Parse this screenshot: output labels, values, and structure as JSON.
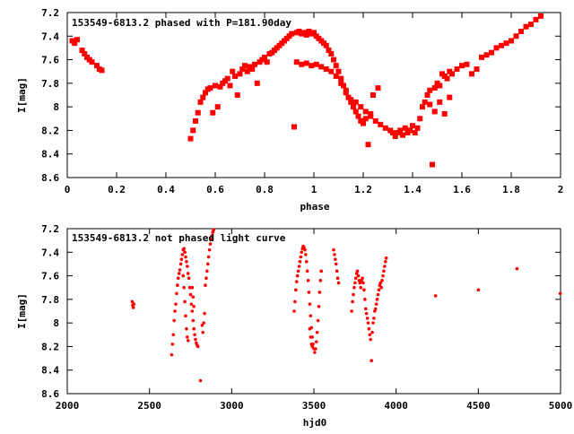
{
  "colors": {
    "points": "#ff0000",
    "axis": "#000000",
    "background": "#ffffff"
  },
  "chart_data": [
    {
      "type": "scatter",
      "title": "153549-6813.2 phased with P=181.90day",
      "xlabel": "phase",
      "ylabel": "I[mag]",
      "xlim": [
        0,
        2
      ],
      "ylim": [
        8.6,
        7.2
      ],
      "y_inverted": true,
      "xticks": [
        0,
        0.2,
        0.4,
        0.6,
        0.8,
        1,
        1.2,
        1.4,
        1.6,
        1.8,
        2
      ],
      "xtick_labels": [
        "0",
        "0.2",
        "0.4",
        "0.6",
        "0.8",
        "1",
        "1.2",
        "1.4",
        "1.6",
        "1.8",
        "2"
      ],
      "yticks": [
        7.2,
        7.4,
        7.6,
        7.8,
        8.0,
        8.2,
        8.4,
        8.6
      ],
      "ytick_labels": [
        "7.2",
        "7.4",
        "7.6",
        "7.8",
        "8",
        "8.2",
        "8.4",
        "8.6"
      ],
      "grid": false,
      "marker": "filled-square",
      "points": [
        [
          0.02,
          7.44
        ],
        [
          0.03,
          7.46
        ],
        [
          0.04,
          7.43
        ],
        [
          0.06,
          7.52
        ],
        [
          0.07,
          7.55
        ],
        [
          0.08,
          7.58
        ],
        [
          0.09,
          7.6
        ],
        [
          0.1,
          7.62
        ],
        [
          0.12,
          7.65
        ],
        [
          0.13,
          7.68
        ],
        [
          0.14,
          7.69
        ],
        [
          0.5,
          8.27
        ],
        [
          0.51,
          8.2
        ],
        [
          0.52,
          8.12
        ],
        [
          0.53,
          8.05
        ],
        [
          0.54,
          7.96
        ],
        [
          0.55,
          7.92
        ],
        [
          0.56,
          7.88
        ],
        [
          0.57,
          7.85
        ],
        [
          0.58,
          7.84
        ],
        [
          0.59,
          8.05
        ],
        [
          0.6,
          7.82
        ],
        [
          0.61,
          8.0
        ],
        [
          0.62,
          7.83
        ],
        [
          0.63,
          7.8
        ],
        [
          0.64,
          7.78
        ],
        [
          0.65,
          7.76
        ],
        [
          0.66,
          7.82
        ],
        [
          0.67,
          7.7
        ],
        [
          0.68,
          7.74
        ],
        [
          0.69,
          7.9
        ],
        [
          0.7,
          7.72
        ],
        [
          0.71,
          7.68
        ],
        [
          0.72,
          7.65
        ],
        [
          0.73,
          7.7
        ],
        [
          0.74,
          7.66
        ],
        [
          0.75,
          7.68
        ],
        [
          0.76,
          7.64
        ],
        [
          0.77,
          7.8
        ],
        [
          0.78,
          7.62
        ],
        [
          0.79,
          7.6
        ],
        [
          0.8,
          7.58
        ],
        [
          0.81,
          7.62
        ],
        [
          0.82,
          7.55
        ],
        [
          0.83,
          7.54
        ],
        [
          0.84,
          7.52
        ],
        [
          0.85,
          7.5
        ],
        [
          0.86,
          7.48
        ],
        [
          0.87,
          7.46
        ],
        [
          0.88,
          7.44
        ],
        [
          0.89,
          7.42
        ],
        [
          0.9,
          7.4
        ],
        [
          0.91,
          7.38
        ],
        [
          0.92,
          8.17
        ],
        [
          0.93,
          7.37
        ],
        [
          0.94,
          7.36
        ],
        [
          0.95,
          7.38
        ],
        [
          0.96,
          7.37
        ],
        [
          0.97,
          7.39
        ],
        [
          0.98,
          7.36
        ],
        [
          0.99,
          7.38
        ],
        [
          1.0,
          7.37
        ],
        [
          1.01,
          7.4
        ],
        [
          1.02,
          7.42
        ],
        [
          1.03,
          7.44
        ],
        [
          1.04,
          7.46
        ],
        [
          1.05,
          7.48
        ],
        [
          1.06,
          7.52
        ],
        [
          1.07,
          7.55
        ],
        [
          1.08,
          7.6
        ],
        [
          1.09,
          7.65
        ],
        [
          1.1,
          7.7
        ],
        [
          1.11,
          7.76
        ],
        [
          1.12,
          7.82
        ],
        [
          1.13,
          7.88
        ],
        [
          1.14,
          7.92
        ],
        [
          1.15,
          7.96
        ],
        [
          1.16,
          8.0
        ],
        [
          1.17,
          8.04
        ],
        [
          1.18,
          8.08
        ],
        [
          1.19,
          8.12
        ],
        [
          1.2,
          8.14
        ],
        [
          1.21,
          8.1
        ],
        [
          1.22,
          8.32
        ],
        [
          1.23,
          8.06
        ],
        [
          0.93,
          7.62
        ],
        [
          0.95,
          7.64
        ],
        [
          0.97,
          7.63
        ],
        [
          0.99,
          7.65
        ],
        [
          1.01,
          7.64
        ],
        [
          1.03,
          7.66
        ],
        [
          1.05,
          7.68
        ],
        [
          1.07,
          7.7
        ],
        [
          1.09,
          7.74
        ],
        [
          1.11,
          7.8
        ],
        [
          1.13,
          7.86
        ],
        [
          1.15,
          7.94
        ],
        [
          1.17,
          7.96
        ],
        [
          1.19,
          8.0
        ],
        [
          1.21,
          8.04
        ],
        [
          1.23,
          8.08
        ],
        [
          1.25,
          8.12
        ],
        [
          1.27,
          8.15
        ],
        [
          1.29,
          8.18
        ],
        [
          1.31,
          8.2
        ],
        [
          1.32,
          8.22
        ],
        [
          1.33,
          8.25
        ],
        [
          1.34,
          8.22
        ],
        [
          1.35,
          8.2
        ],
        [
          1.36,
          8.24
        ],
        [
          1.37,
          8.18
        ],
        [
          1.38,
          8.22
        ],
        [
          1.39,
          8.2
        ],
        [
          1.4,
          8.16
        ],
        [
          1.41,
          8.22
        ],
        [
          1.42,
          8.18
        ],
        [
          1.24,
          7.9
        ],
        [
          1.26,
          7.84
        ],
        [
          1.43,
          8.1
        ],
        [
          1.44,
          8.0
        ],
        [
          1.45,
          7.96
        ],
        [
          1.46,
          7.9
        ],
        [
          1.47,
          7.86
        ],
        [
          1.48,
          8.49
        ],
        [
          1.49,
          7.84
        ],
        [
          1.5,
          7.8
        ],
        [
          1.51,
          7.82
        ],
        [
          1.52,
          7.72
        ],
        [
          1.53,
          7.74
        ],
        [
          1.54,
          7.76
        ],
        [
          1.55,
          7.7
        ],
        [
          1.56,
          7.72
        ],
        [
          1.58,
          7.68
        ],
        [
          1.6,
          7.65
        ],
        [
          1.62,
          7.64
        ],
        [
          1.64,
          7.72
        ],
        [
          1.66,
          7.68
        ],
        [
          1.68,
          7.58
        ],
        [
          1.7,
          7.56
        ],
        [
          1.72,
          7.54
        ],
        [
          1.74,
          7.5
        ],
        [
          1.76,
          7.48
        ],
        [
          1.78,
          7.46
        ],
        [
          1.8,
          7.44
        ],
        [
          1.82,
          7.4
        ],
        [
          1.84,
          7.36
        ],
        [
          1.86,
          7.32
        ],
        [
          1.88,
          7.3
        ],
        [
          1.9,
          7.26
        ],
        [
          1.92,
          7.23
        ],
        [
          1.47,
          7.98
        ],
        [
          1.49,
          8.04
        ],
        [
          1.51,
          7.96
        ],
        [
          1.53,
          8.06
        ],
        [
          1.55,
          7.92
        ]
      ]
    },
    {
      "type": "scatter",
      "title": "153549-6813.2 not phased light curve",
      "xlabel": "hjd0",
      "ylabel": "I[mag]",
      "xlim": [
        2000,
        5000
      ],
      "ylim": [
        8.6,
        7.2
      ],
      "y_inverted": true,
      "xticks": [
        2000,
        2500,
        3000,
        3500,
        4000,
        4500,
        5000
      ],
      "xtick_labels": [
        "2000",
        "2500",
        "3000",
        "3500",
        "4000",
        "4500",
        "5000"
      ],
      "yticks": [
        7.2,
        7.4,
        7.6,
        7.8,
        8.0,
        8.2,
        8.4,
        8.6
      ],
      "ytick_labels": [
        "7.2",
        "7.4",
        "7.6",
        "7.8",
        "8",
        "8.2",
        "8.4",
        "8.6"
      ],
      "grid": false,
      "marker": "small-dot",
      "points": [
        [
          2395,
          7.82
        ],
        [
          2398,
          7.85
        ],
        [
          2402,
          7.87
        ],
        [
          2405,
          7.84
        ],
        [
          2635,
          8.27
        ],
        [
          2640,
          8.18
        ],
        [
          2645,
          8.1
        ],
        [
          2650,
          7.98
        ],
        [
          2655,
          7.9
        ],
        [
          2660,
          7.84
        ],
        [
          2665,
          7.75
        ],
        [
          2670,
          7.68
        ],
        [
          2675,
          7.62
        ],
        [
          2680,
          7.58
        ],
        [
          2685,
          7.55
        ],
        [
          2690,
          7.5
        ],
        [
          2695,
          7.46
        ],
        [
          2700,
          7.42
        ],
        [
          2705,
          7.38
        ],
        [
          2710,
          7.37
        ],
        [
          2715,
          7.4
        ],
        [
          2720,
          7.44
        ],
        [
          2725,
          7.48
        ],
        [
          2730,
          7.52
        ],
        [
          2735,
          7.58
        ],
        [
          2740,
          7.62
        ],
        [
          2745,
          7.7
        ],
        [
          2750,
          7.76
        ],
        [
          2755,
          7.84
        ],
        [
          2760,
          7.9
        ],
        [
          2765,
          7.98
        ],
        [
          2770,
          8.05
        ],
        [
          2775,
          8.1
        ],
        [
          2780,
          8.14
        ],
        [
          2785,
          8.17
        ],
        [
          2790,
          8.19
        ],
        [
          2795,
          8.2
        ],
        [
          2705,
          7.6
        ],
        [
          2710,
          7.7
        ],
        [
          2715,
          7.82
        ],
        [
          2720,
          7.94
        ],
        [
          2725,
          8.05
        ],
        [
          2730,
          8.12
        ],
        [
          2735,
          8.15
        ],
        [
          2760,
          7.7
        ],
        [
          2765,
          7.78
        ],
        [
          2770,
          7.86
        ],
        [
          2810,
          8.49
        ],
        [
          2820,
          8.02
        ],
        [
          2825,
          8.08
        ],
        [
          2830,
          8.0
        ],
        [
          2835,
          7.92
        ],
        [
          2840,
          7.68
        ],
        [
          2845,
          7.62
        ],
        [
          2850,
          7.56
        ],
        [
          2855,
          7.5
        ],
        [
          2860,
          7.44
        ],
        [
          2865,
          7.38
        ],
        [
          2870,
          7.33
        ],
        [
          2875,
          7.29
        ],
        [
          2880,
          7.26
        ],
        [
          2885,
          7.23
        ],
        [
          2890,
          7.21
        ],
        [
          3380,
          7.9
        ],
        [
          3385,
          7.82
        ],
        [
          3390,
          7.72
        ],
        [
          3395,
          7.65
        ],
        [
          3400,
          7.6
        ],
        [
          3405,
          7.56
        ],
        [
          3410,
          7.52
        ],
        [
          3415,
          7.48
        ],
        [
          3420,
          7.44
        ],
        [
          3425,
          7.4
        ],
        [
          3430,
          7.37
        ],
        [
          3435,
          7.35
        ],
        [
          3440,
          7.36
        ],
        [
          3445,
          7.38
        ],
        [
          3450,
          7.42
        ],
        [
          3455,
          7.48
        ],
        [
          3460,
          7.56
        ],
        [
          3465,
          7.64
        ],
        [
          3470,
          7.74
        ],
        [
          3475,
          7.84
        ],
        [
          3480,
          7.94
        ],
        [
          3485,
          8.04
        ],
        [
          3490,
          8.12
        ],
        [
          3495,
          8.18
        ],
        [
          3500,
          8.22
        ],
        [
          3505,
          8.25
        ],
        [
          3510,
          8.22
        ],
        [
          3515,
          8.16
        ],
        [
          3520,
          8.08
        ],
        [
          3525,
          7.98
        ],
        [
          3530,
          7.86
        ],
        [
          3535,
          7.74
        ],
        [
          3540,
          7.64
        ],
        [
          3545,
          7.56
        ],
        [
          3475,
          8.05
        ],
        [
          3480,
          8.12
        ],
        [
          3485,
          8.18
        ],
        [
          3490,
          8.2
        ],
        [
          3620,
          7.38
        ],
        [
          3625,
          7.42
        ],
        [
          3630,
          7.46
        ],
        [
          3635,
          7.5
        ],
        [
          3640,
          7.56
        ],
        [
          3645,
          7.62
        ],
        [
          3650,
          7.66
        ],
        [
          3730,
          7.9
        ],
        [
          3735,
          7.82
        ],
        [
          3740,
          7.76
        ],
        [
          3745,
          7.7
        ],
        [
          3750,
          7.66
        ],
        [
          3755,
          7.62
        ],
        [
          3760,
          7.58
        ],
        [
          3765,
          7.56
        ],
        [
          3770,
          7.6
        ],
        [
          3775,
          7.64
        ],
        [
          3780,
          7.66
        ],
        [
          3785,
          7.7
        ],
        [
          3790,
          7.64
        ],
        [
          3795,
          7.62
        ],
        [
          3800,
          7.66
        ],
        [
          3805,
          7.72
        ],
        [
          3810,
          7.8
        ],
        [
          3815,
          7.88
        ],
        [
          3820,
          7.92
        ],
        [
          3825,
          7.96
        ],
        [
          3830,
          8.0
        ],
        [
          3835,
          8.05
        ],
        [
          3840,
          8.1
        ],
        [
          3845,
          8.14
        ],
        [
          3850,
          8.32
        ],
        [
          3855,
          8.08
        ],
        [
          3860,
          8.0
        ],
        [
          3865,
          7.96
        ],
        [
          3870,
          7.9
        ],
        [
          3875,
          7.88
        ],
        [
          3880,
          7.84
        ],
        [
          3885,
          7.8
        ],
        [
          3890,
          7.76
        ],
        [
          3895,
          7.72
        ],
        [
          3900,
          7.68
        ],
        [
          3905,
          7.66
        ],
        [
          3910,
          7.7
        ],
        [
          3915,
          7.64
        ],
        [
          3920,
          7.6
        ],
        [
          3925,
          7.56
        ],
        [
          3930,
          7.52
        ],
        [
          3935,
          7.48
        ],
        [
          3940,
          7.45
        ],
        [
          4240,
          7.77
        ],
        [
          4500,
          7.72
        ],
        [
          4735,
          7.54
        ],
        [
          4998,
          7.75
        ]
      ]
    }
  ]
}
